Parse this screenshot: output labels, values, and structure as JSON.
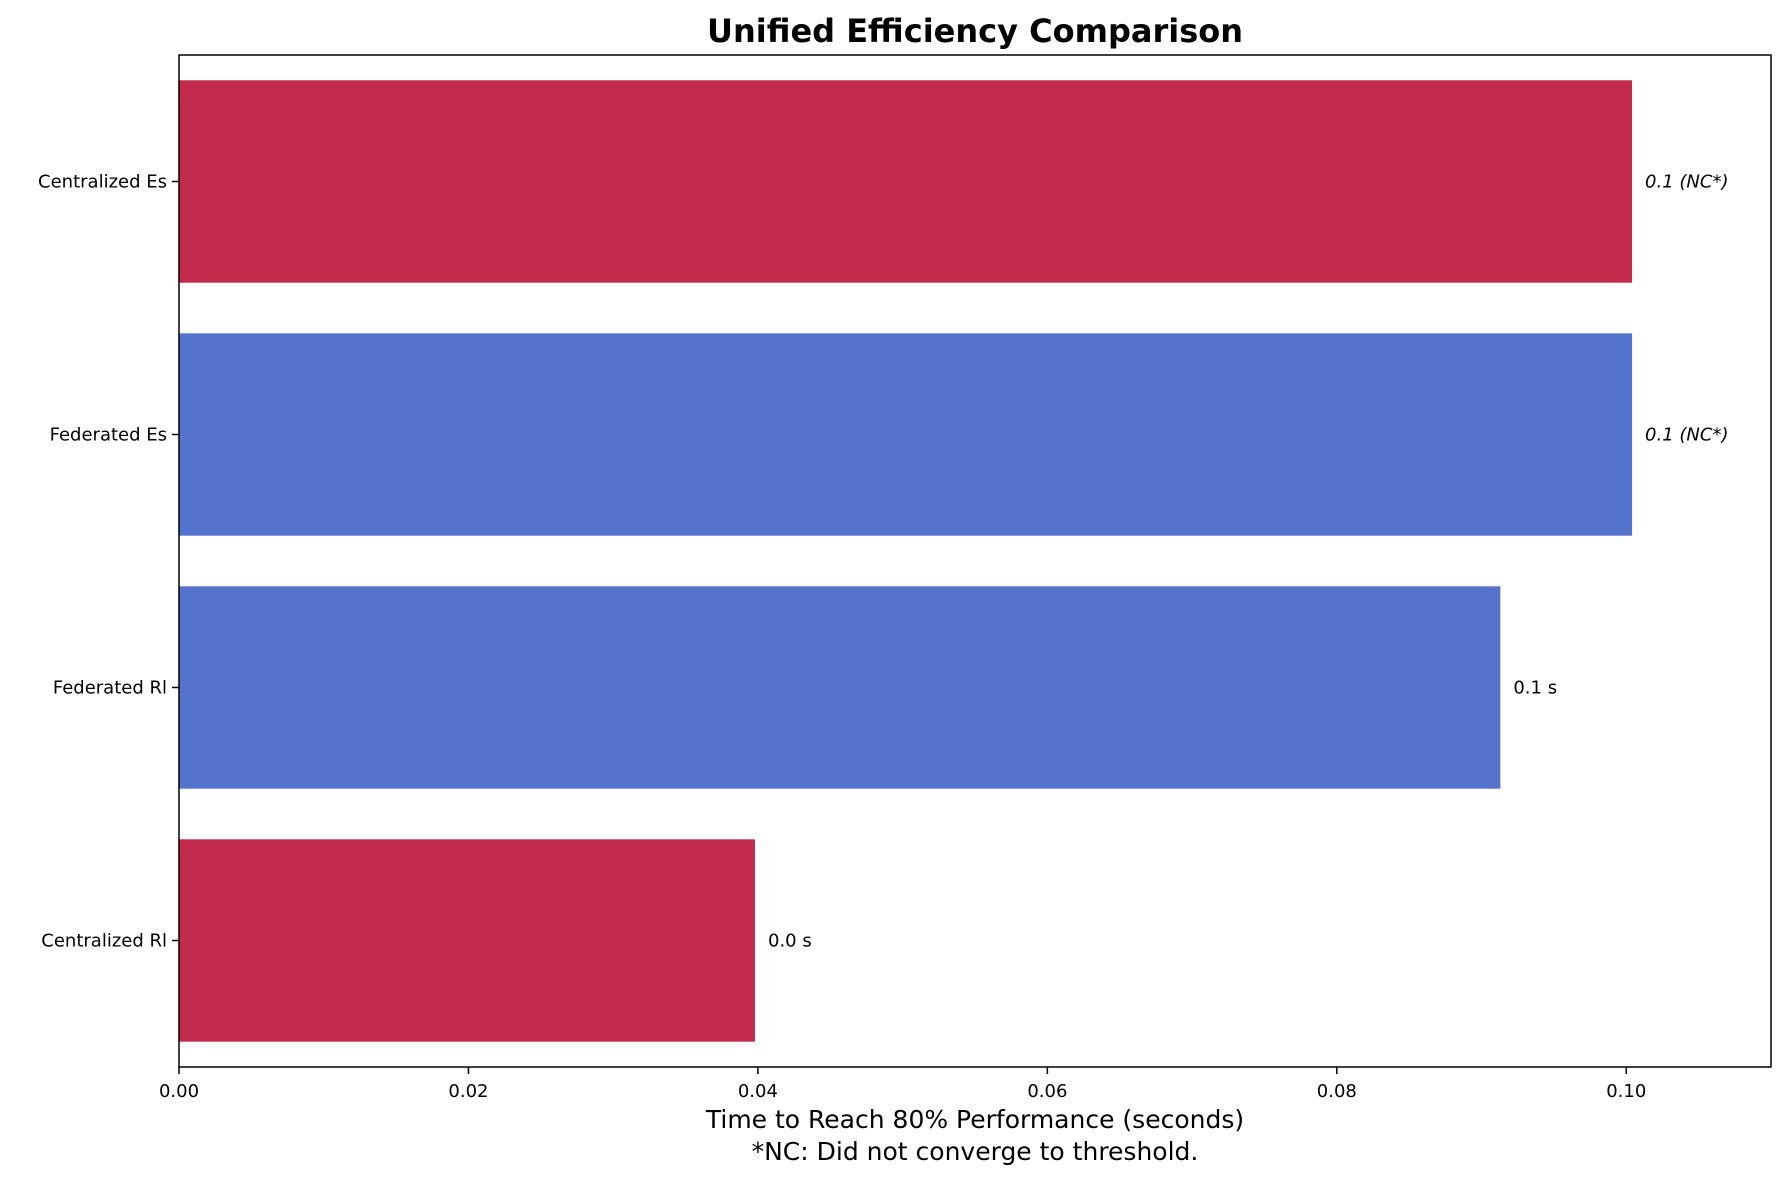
{
  "chart_data": {
    "type": "bar",
    "orientation": "horizontal",
    "title": "Unified Efficiency Comparison",
    "xlabel": "Time to Reach 80% Performance (seconds)",
    "footnote": "*NC: Did not converge to threshold.",
    "ylabel": "",
    "xlim": [
      0,
      0.11
    ],
    "xticks": [
      0.0,
      0.02,
      0.04,
      0.06,
      0.08,
      0.1
    ],
    "xtick_labels": [
      "0.00",
      "0.02",
      "0.04",
      "0.06",
      "0.08",
      "0.10"
    ],
    "grid": false,
    "legend": false,
    "colors": {
      "centralized": "#c22b4b",
      "federated": "#5573cc"
    },
    "bars": [
      {
        "category": "Centralized Es",
        "value": 0.1004,
        "group": "centralized",
        "label": "0.1 (NC*)",
        "not_converged": true
      },
      {
        "category": "Federated Es",
        "value": 0.1004,
        "group": "federated",
        "label": "0.1 (NC*)",
        "not_converged": true
      },
      {
        "category": "Federated Rl",
        "value": 0.0913,
        "group": "federated",
        "label": "0.1 s",
        "not_converged": false
      },
      {
        "category": "Centralized Rl",
        "value": 0.0398,
        "group": "centralized",
        "label": "0.0 s",
        "not_converged": false
      }
    ]
  }
}
